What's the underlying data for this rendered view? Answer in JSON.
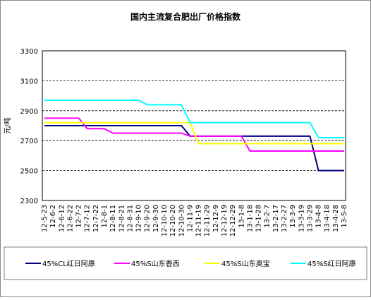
{
  "chart_data": {
    "type": "line",
    "title": "国内主流复合肥出厂价格指数",
    "y_label": "元/吨",
    "categories": [
      "12-5-23",
      "12-6-2",
      "12-6-12",
      "12-6-22",
      "12-7-2",
      "12-7-12",
      "12-7-22",
      "12-8-1",
      "12-8-11",
      "12-8-21",
      "12-8-31",
      "12-9-10",
      "12-9-20",
      "12-9-30",
      "12-10-10",
      "12-10-20",
      "12-10-30",
      "12-11-9",
      "12-11-19",
      "12-11-29",
      "12-12-9",
      "12-12-19",
      "12-12-29",
      "13-1-8",
      "13-1-18",
      "13-1-28",
      "13-2-7",
      "13-2-17",
      "13-2-27",
      "13-3-9",
      "13-3-19",
      "13-3-29",
      "13-4-8",
      "13-4-18",
      "13-4-28",
      "13-5-8"
    ],
    "series": [
      {
        "name": "45%CL红日阿康",
        "color": "#000080",
        "values": [
          2800,
          2800,
          2800,
          2800,
          2800,
          2800,
          2800,
          2800,
          2800,
          2800,
          2800,
          2800,
          2800,
          2800,
          2800,
          2800,
          2800,
          2730,
          2730,
          2730,
          2730,
          2730,
          2730,
          2730,
          2730,
          2730,
          2730,
          2730,
          2730,
          2730,
          2730,
          2730,
          2500,
          2500,
          2500,
          2500
        ]
      },
      {
        "name": "45%S山东香西",
        "color": "#ff00ff",
        "values": [
          2850,
          2850,
          2850,
          2850,
          2850,
          2780,
          2780,
          2780,
          2750,
          2750,
          2750,
          2750,
          2750,
          2750,
          2750,
          2750,
          2750,
          2730,
          2730,
          2730,
          2730,
          2730,
          2730,
          2730,
          2630,
          2630,
          2630,
          2630,
          2630,
          2630,
          2630,
          2630,
          2630,
          2630,
          2630,
          2630
        ]
      },
      {
        "name": "45%S山东奥宝",
        "color": "#ffff00",
        "values": [
          2820,
          2820,
          2820,
          2820,
          2820,
          2820,
          2820,
          2820,
          2820,
          2820,
          2820,
          2820,
          2820,
          2820,
          2820,
          2820,
          2820,
          2820,
          2680,
          2680,
          2680,
          2680,
          2680,
          2680,
          2680,
          2680,
          2680,
          2680,
          2680,
          2680,
          2680,
          2680,
          2680,
          2680,
          2680,
          2680
        ]
      },
      {
        "name": "45%S红日阿康",
        "color": "#00ffff",
        "values": [
          2970,
          2970,
          2970,
          2970,
          2970,
          2970,
          2970,
          2970,
          2970,
          2970,
          2970,
          2970,
          2940,
          2940,
          2940,
          2940,
          2940,
          2820,
          2820,
          2820,
          2820,
          2820,
          2820,
          2820,
          2820,
          2820,
          2820,
          2820,
          2820,
          2820,
          2820,
          2820,
          2720,
          2720,
          2720,
          2720
        ]
      }
    ],
    "ylim": [
      2300,
      3300
    ],
    "yticks": [
      2300,
      2500,
      2700,
      2900,
      3100,
      3300
    ],
    "grid": true
  }
}
